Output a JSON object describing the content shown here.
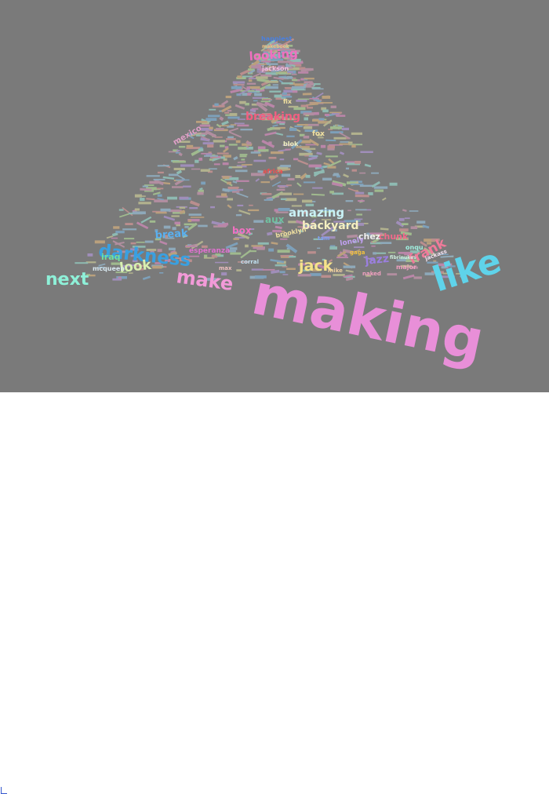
{
  "wordcloud": {
    "background": "#7a7a7a",
    "words": [
      {
        "text": "making",
        "color": "#e88fd8"
      },
      {
        "text": "like",
        "color": "#5fd3ea"
      },
      {
        "text": "next",
        "color": "#8ef0d8"
      },
      {
        "text": "make",
        "color": "#f29ad8"
      },
      {
        "text": "darkness",
        "color": "#3aa0e0"
      },
      {
        "text": "look",
        "color": "#d8f0b0"
      },
      {
        "text": "jack",
        "color": "#f6e38a"
      },
      {
        "text": "frank",
        "color": "#f07a9a"
      },
      {
        "text": "jazz",
        "color": "#9b7fe0"
      },
      {
        "text": "amazing",
        "color": "#c9f2f6"
      },
      {
        "text": "backyard",
        "color": "#f5f0c0"
      },
      {
        "text": "breaking",
        "color": "#f06080"
      },
      {
        "text": "looking",
        "color": "#f070c0"
      },
      {
        "text": "break",
        "color": "#59b0f0"
      },
      {
        "text": "mexico",
        "color": "#e0a0c8"
      },
      {
        "text": "iraq",
        "color": "#70e0a0"
      },
      {
        "text": "mcqueen",
        "color": "#d8e8f0"
      },
      {
        "text": "chez",
        "color": "#f0f0f0"
      },
      {
        "text": "chunk",
        "color": "#f06a8a"
      },
      {
        "text": "jackson",
        "color": "#f0c0e0"
      },
      {
        "text": "fox",
        "color": "#f0e0a0"
      },
      {
        "text": "blok",
        "color": "#f0f0c0"
      },
      {
        "text": "aux",
        "color": "#70c0a0"
      },
      {
        "text": "box",
        "color": "#f070c0"
      },
      {
        "text": "esperanza",
        "color": "#e070d0"
      },
      {
        "text": "major",
        "color": "#f0a0c0"
      },
      {
        "text": "naked",
        "color": "#f0a0c0"
      },
      {
        "text": "jackass",
        "color": "#f0e0f0"
      },
      {
        "text": "max",
        "color": "#f0c0c0"
      },
      {
        "text": "corral",
        "color": "#c0e0f0"
      },
      {
        "text": "brooklyn",
        "color": "#f0e0a0"
      },
      {
        "text": "mike",
        "color": "#f0d0a0"
      },
      {
        "text": "fix",
        "color": "#f0e0a0"
      },
      {
        "text": "africa",
        "color": "#f05050"
      },
      {
        "text": "onqu",
        "color": "#a0f0e0"
      },
      {
        "text": "lonely",
        "color": "#c0a0f0"
      },
      {
        "text": "fibrinukes",
        "color": "#d0f0e0"
      },
      {
        "text": "makebook",
        "color": "#f0c080"
      },
      {
        "text": "happiest",
        "color": "#4a80e0"
      },
      {
        "text": "gaga",
        "color": "#f0c040"
      },
      {
        "text": "tam",
        "color": "#80a0f0"
      }
    ]
  }
}
